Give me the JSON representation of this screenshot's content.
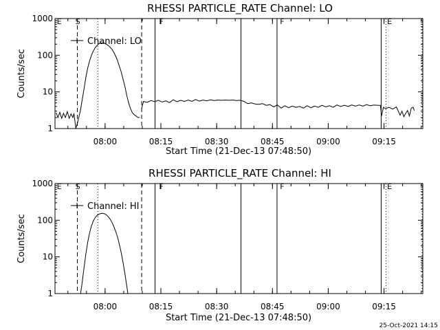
{
  "footer_stamp": "25-Oct-2021 14:15",
  "chart_data": [
    {
      "type": "line",
      "title": "RHESSI PARTICLE_RATE Channel: LO",
      "xlabel": "Start Time (21-Dec-13 07:48:50)",
      "ylabel": "Counts/sec",
      "y_scale": "log",
      "ylim": [
        1,
        1000
      ],
      "y_ticks": [
        {
          "v": 1,
          "label": "1"
        },
        {
          "v": 10,
          "label": "10"
        },
        {
          "v": 100,
          "label": "100"
        },
        {
          "v": 1000,
          "label": "1000"
        }
      ],
      "xlim_min": [
        -2.3,
        49
      ],
      "x_ticks": [
        {
          "v": 11.17,
          "label": "08:00"
        },
        {
          "v": 26.17,
          "label": "08:15"
        },
        {
          "v": 41.17,
          "label": "08:30"
        },
        {
          "v": 56.17,
          "label": "08:45"
        },
        {
          "v": 71.17,
          "label": "09:00"
        },
        {
          "v": 86.17,
          "label": "09:15"
        }
      ],
      "legend": {
        "label": "Channel: LO",
        "position": "top-left"
      },
      "flag_labels": [
        {
          "text": "E",
          "x_min": -2.0
        },
        {
          "text": "S",
          "x_min": 3.0
        },
        {
          "text": "F",
          "x_min": 25.5
        },
        {
          "text": "F",
          "x_min": 58.0
        },
        {
          "text": "E",
          "x_min": 86.8
        }
      ],
      "markers": [
        {
          "x_min": 3.7,
          "style": "dashed"
        },
        {
          "x_min": 9.2,
          "style": "dotted"
        },
        {
          "x_min": 21.0,
          "style": "dashed"
        },
        {
          "x_min": 24.6,
          "style": "solid"
        },
        {
          "x_min": 47.7,
          "style": "solid"
        },
        {
          "x_min": 57.4,
          "style": "solid"
        },
        {
          "x_min": 85.4,
          "style": "solid"
        },
        {
          "x_min": 86.7,
          "style": "dotted"
        },
        {
          "x_min": 96.4,
          "style": "dotted"
        }
      ],
      "series": [
        {
          "name": "Channel: LO",
          "segments": [
            [
              [
                -2.0,
                2.7
              ],
              [
                -1.5,
                2.0
              ],
              [
                -1.0,
                2.8
              ],
              [
                -0.5,
                1.9
              ],
              [
                0.0,
                2.6
              ],
              [
                0.5,
                2.0
              ],
              [
                1.0,
                2.9
              ],
              [
                1.5,
                1.9
              ],
              [
                2.0,
                2.5
              ],
              [
                2.5,
                2.0
              ],
              [
                2.8,
                2.6
              ],
              [
                3.3,
                1.0
              ],
              [
                3.8,
                1.5
              ],
              [
                4.5,
                3.0
              ],
              [
                5.0,
                6.0
              ],
              [
                5.5,
                12.0
              ],
              [
                6.0,
                25.0
              ],
              [
                6.5,
                45.0
              ],
              [
                7.0,
                70.0
              ],
              [
                7.5,
                100.0
              ],
              [
                8.0,
                130.0
              ],
              [
                8.5,
                160.0
              ],
              [
                9.0,
                185.0
              ],
              [
                9.5,
                205.0
              ],
              [
                10.0,
                215.0
              ],
              [
                10.5,
                218.0
              ],
              [
                11.0,
                212.0
              ],
              [
                11.5,
                200.0
              ],
              [
                12.0,
                185.0
              ],
              [
                12.5,
                165.0
              ],
              [
                13.0,
                145.0
              ],
              [
                13.5,
                120.0
              ],
              [
                14.0,
                95.0
              ],
              [
                14.5,
                72.0
              ],
              [
                15.0,
                50.0
              ],
              [
                15.5,
                35.0
              ],
              [
                16.0,
                22.0
              ],
              [
                16.5,
                14.0
              ],
              [
                17.0,
                8.0
              ],
              [
                17.5,
                5.0
              ],
              [
                18.0,
                3.5
              ],
              [
                18.5,
                2.7
              ],
              [
                19.0,
                2.4
              ],
              [
                19.5,
                2.2
              ],
              [
                20.0,
                2.0
              ],
              [
                20.5,
                2.0
              ]
            ],
            [
              [
                21.0,
                3.5
              ],
              [
                21.5,
                5.5
              ],
              [
                22.5,
                5.2
              ],
              [
                23.5,
                5.8
              ],
              [
                24.5,
                5.4
              ],
              [
                25.5,
                5.9
              ],
              [
                26.5,
                5.3
              ],
              [
                27.5,
                5.7
              ],
              [
                28.5,
                5.1
              ],
              [
                29.5,
                6.1
              ],
              [
                30.5,
                5.4
              ],
              [
                31.5,
                5.9
              ],
              [
                32.5,
                5.5
              ],
              [
                33.5,
                6.0
              ],
              [
                34.5,
                5.5
              ],
              [
                35.5,
                6.2
              ],
              [
                36.5,
                5.6
              ],
              [
                37.5,
                6.0
              ],
              [
                38.5,
                5.7
              ],
              [
                39.5,
                6.1
              ],
              [
                40.5,
                5.8
              ],
              [
                41.5,
                6.0
              ],
              [
                42.5,
                5.9
              ],
              [
                43.5,
                6.0
              ],
              [
                44.5,
                5.9
              ],
              [
                45.5,
                6.0
              ],
              [
                46.5,
                5.8
              ],
              [
                47.5,
                5.9
              ],
              [
                48.5,
                5.5
              ],
              [
                49.5,
                4.8
              ],
              [
                50.5,
                5.0
              ],
              [
                51.5,
                4.7
              ],
              [
                52.5,
                4.6
              ],
              [
                53.5,
                4.8
              ],
              [
                54.5,
                4.3
              ],
              [
                55.5,
                4.5
              ],
              [
                56.5,
                3.9
              ],
              [
                57.5,
                4.4
              ],
              [
                58.5,
                3.6
              ],
              [
                59.5,
                4.2
              ],
              [
                60.5,
                3.7
              ],
              [
                61.5,
                4.1
              ],
              [
                62.5,
                3.8
              ],
              [
                63.5,
                4.0
              ],
              [
                64.5,
                3.6
              ],
              [
                65.5,
                4.2
              ],
              [
                66.5,
                3.7
              ],
              [
                67.5,
                4.1
              ],
              [
                68.5,
                3.8
              ],
              [
                69.5,
                4.3
              ],
              [
                70.5,
                3.9
              ],
              [
                71.5,
                4.2
              ],
              [
                72.5,
                3.8
              ],
              [
                73.5,
                4.4
              ],
              [
                74.5,
                4.0
              ],
              [
                75.5,
                4.3
              ],
              [
                76.5,
                4.0
              ],
              [
                77.5,
                4.4
              ],
              [
                78.5,
                4.1
              ],
              [
                79.5,
                4.4
              ],
              [
                80.5,
                4.1
              ],
              [
                81.5,
                4.5
              ],
              [
                82.5,
                4.2
              ],
              [
                83.5,
                4.4
              ],
              [
                84.5,
                4.3
              ],
              [
                85.2,
                4.3
              ],
              [
                85.5,
                2.2
              ],
              [
                86.0,
                3.8
              ],
              [
                86.5,
                3.5
              ],
              [
                87.5,
                3.8
              ],
              [
                88.5,
                3.4
              ],
              [
                89.5,
                3.9
              ],
              [
                90.5,
                2.3
              ],
              [
                91.0,
                3.0
              ],
              [
                91.5,
                2.1
              ],
              [
                92.0,
                2.6
              ],
              [
                92.5,
                3.1
              ],
              [
                93.0,
                2.2
              ],
              [
                93.5,
                3.6
              ],
              [
                94.0,
                3.8
              ],
              [
                94.3,
                3.1
              ]
            ]
          ]
        }
      ]
    },
    {
      "type": "line",
      "title": "RHESSI PARTICLE_RATE Channel: HI",
      "xlabel": "Start Time (21-Dec-13 07:48:50)",
      "ylabel": "Counts/sec",
      "y_scale": "log",
      "ylim": [
        1,
        1000
      ],
      "y_ticks": [
        {
          "v": 1,
          "label": "1"
        },
        {
          "v": 10,
          "label": "10"
        },
        {
          "v": 100,
          "label": "100"
        },
        {
          "v": 1000,
          "label": "1000"
        }
      ],
      "xlim_min": [
        -2.3,
        49
      ],
      "x_ticks": [
        {
          "v": 11.17,
          "label": "08:00"
        },
        {
          "v": 26.17,
          "label": "08:15"
        },
        {
          "v": 41.17,
          "label": "08:30"
        },
        {
          "v": 56.17,
          "label": "08:45"
        },
        {
          "v": 71.17,
          "label": "09:00"
        },
        {
          "v": 86.17,
          "label": "09:15"
        }
      ],
      "legend": {
        "label": "Channel: HI",
        "position": "top-left"
      },
      "flag_labels": [
        {
          "text": "E",
          "x_min": -2.0
        },
        {
          "text": "S",
          "x_min": 3.0
        },
        {
          "text": "F",
          "x_min": 25.5
        },
        {
          "text": "F",
          "x_min": 58.0
        },
        {
          "text": "E",
          "x_min": 86.8
        }
      ],
      "markers": [
        {
          "x_min": 3.7,
          "style": "dashed"
        },
        {
          "x_min": 9.2,
          "style": "dotted"
        },
        {
          "x_min": 21.0,
          "style": "dashed"
        },
        {
          "x_min": 24.6,
          "style": "solid"
        },
        {
          "x_min": 47.7,
          "style": "solid"
        },
        {
          "x_min": 57.4,
          "style": "solid"
        },
        {
          "x_min": 85.4,
          "style": "solid"
        },
        {
          "x_min": 86.7,
          "style": "dotted"
        },
        {
          "x_min": 96.4,
          "style": "dotted"
        }
      ],
      "series": [
        {
          "name": "Channel: HI",
          "segments": [
            [
              [
                4.6,
                1.0
              ],
              [
                5.0,
                2.0
              ],
              [
                5.5,
                5.0
              ],
              [
                6.0,
                12.0
              ],
              [
                6.5,
                25.0
              ],
              [
                7.0,
                45.0
              ],
              [
                7.5,
                70.0
              ],
              [
                8.0,
                95.0
              ],
              [
                8.5,
                118.0
              ],
              [
                9.0,
                135.0
              ],
              [
                9.5,
                145.0
              ],
              [
                10.0,
                152.0
              ],
              [
                10.5,
                155.0
              ],
              [
                11.0,
                150.0
              ],
              [
                11.5,
                140.0
              ],
              [
                12.0,
                125.0
              ],
              [
                12.5,
                108.0
              ],
              [
                13.0,
                88.0
              ],
              [
                13.5,
                68.0
              ],
              [
                14.0,
                50.0
              ],
              [
                14.5,
                35.0
              ],
              [
                15.0,
                22.0
              ],
              [
                15.5,
                13.0
              ],
              [
                16.0,
                7.0
              ],
              [
                16.5,
                3.5
              ],
              [
                17.0,
                1.6
              ],
              [
                17.3,
                1.0
              ]
            ]
          ]
        }
      ]
    }
  ]
}
